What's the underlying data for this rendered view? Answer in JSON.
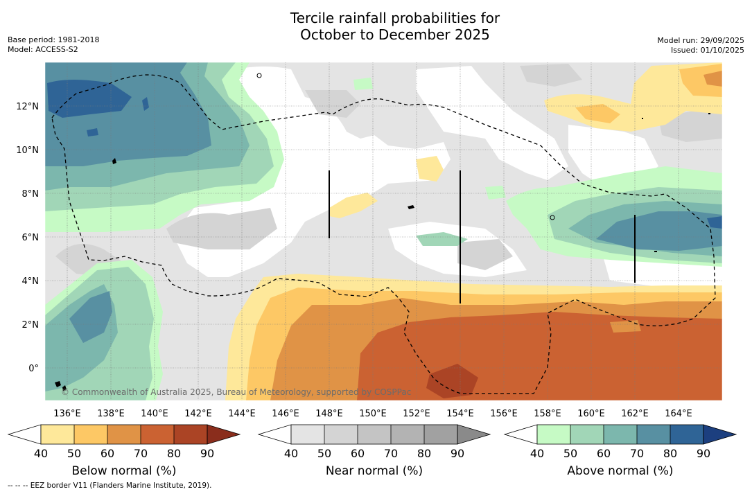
{
  "title": {
    "line1": "Tercile rainfall probabilities for",
    "line2": "October to December 2025"
  },
  "meta": {
    "base_period": "Base period: 1981-2018",
    "model": "Model: ACCESS-S2",
    "model_run": "Model run: 29/09/2025",
    "issued": "Issued: 01/10/2025"
  },
  "map": {
    "lon_labels": [
      "136°E",
      "138°E",
      "140°E",
      "142°E",
      "144°E",
      "146°E",
      "148°E",
      "150°E",
      "152°E",
      "154°E",
      "156°E",
      "158°E",
      "160°E",
      "162°E",
      "164°E"
    ],
    "lat_labels": [
      "12°N",
      "10°N",
      "8°N",
      "6°N",
      "4°N",
      "2°N",
      "0°"
    ],
    "copyright": "© Commonwealth of Australia 2025, Bureau of Meteorology, supported by COSPPac"
  },
  "colorbars": {
    "below": {
      "title": "Below normal (%)",
      "ticks": [
        "40",
        "50",
        "60",
        "70",
        "80",
        "90"
      ],
      "colors": [
        "#ffffff",
        "#fee89a",
        "#fdc865",
        "#e09346",
        "#cb6232",
        "#ab4425",
        "#8a2d1c"
      ]
    },
    "near": {
      "title": "Near normal (%)",
      "ticks": [
        "40",
        "50",
        "60",
        "70",
        "80",
        "90"
      ],
      "colors": [
        "#ffffff",
        "#e4e4e4",
        "#d4d4d4",
        "#c4c4c4",
        "#b3b3b3",
        "#a1a1a1",
        "#8a8a8a"
      ]
    },
    "above": {
      "title": "Above normal (%)",
      "ticks": [
        "40",
        "50",
        "60",
        "70",
        "80",
        "90"
      ],
      "colors": [
        "#ffffff",
        "#c6fac5",
        "#a1d6b7",
        "#7cb7ad",
        "#5890a2",
        "#2f6496",
        "#1c3f7f"
      ]
    }
  },
  "footer": "--  --  -- EEZ border V11 (Flanders Marine Institute, 2019)."
}
